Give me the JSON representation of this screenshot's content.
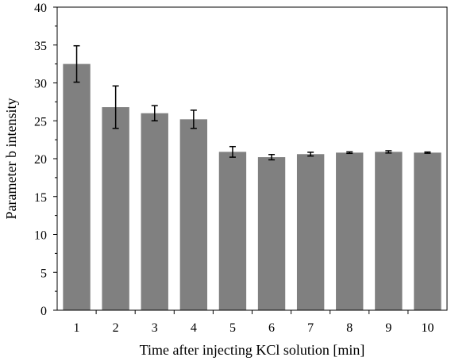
{
  "chart_data": {
    "type": "bar",
    "title": "",
    "xlabel": "Time after injecting KCl solution [min]",
    "ylabel": "Parameter b intensity",
    "categories": [
      "1",
      "2",
      "3",
      "4",
      "5",
      "6",
      "7",
      "8",
      "9",
      "10"
    ],
    "values": [
      32.5,
      26.8,
      26.0,
      25.2,
      20.9,
      20.2,
      20.6,
      20.8,
      20.9,
      20.8
    ],
    "error": [
      2.4,
      2.8,
      1.0,
      1.2,
      0.7,
      0.35,
      0.25,
      0.1,
      0.15,
      0.08
    ],
    "ylim": [
      0,
      40
    ],
    "yticks": [
      0,
      5,
      10,
      15,
      20,
      25,
      30,
      35,
      40
    ],
    "grid": false,
    "bar_color": "#808080",
    "error_color": "#000000"
  }
}
